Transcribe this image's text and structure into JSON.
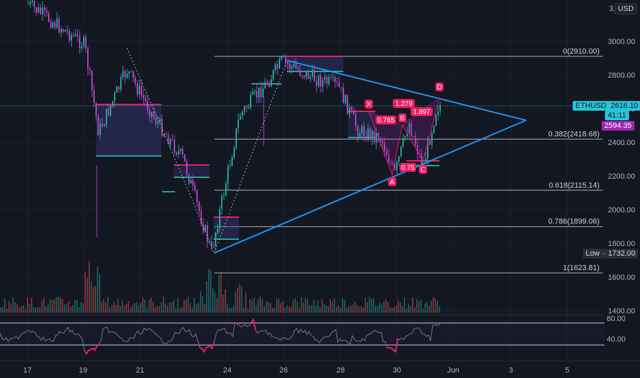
{
  "currency_button": "USD",
  "symbol_tag": {
    "symbol": "ETHUSD",
    "price": "2616.10",
    "countdown": "41:11",
    "color": "#26c6da"
  },
  "prev_price_tag": {
    "value": "2594.35",
    "color": "#9c27b0"
  },
  "low_tag": {
    "label": "Low",
    "value": "1732.00"
  },
  "price_axis": {
    "top_partial": "3...",
    "ticks": [
      "3000.00",
      "2800.00",
      "2600.00",
      "2400.00",
      "2200.00",
      "2000.00",
      "1800.00",
      "1600.00",
      "1400.00"
    ]
  },
  "rsi_axis": {
    "ticks": [
      "80.00",
      "40.00"
    ]
  },
  "time_axis": {
    "ticks": [
      "17",
      "19",
      "21",
      "24",
      "26",
      "28",
      "30",
      "Jun",
      "3",
      "5"
    ]
  },
  "fib_levels": [
    {
      "label": "0(2910.00)",
      "price": 2910.0
    },
    {
      "label": "0.382(2418.68)",
      "price": 2418.68
    },
    {
      "label": "0.618(2115.14)",
      "price": 2115.14
    },
    {
      "label": "0.786(1899.06)",
      "price": 1899.06
    },
    {
      "label": "1(1623.81)",
      "price": 1623.81
    }
  ],
  "harmonic": {
    "points": [
      "X",
      "A",
      "B",
      "C",
      "D"
    ],
    "ratios": [
      "0.765",
      "1.279",
      "1.897",
      "0.75"
    ],
    "color": "#e91e63"
  },
  "colors": {
    "bg": "#131722",
    "up": "#26a69a",
    "down": "#ab47bc",
    "trendline": "#2196f3",
    "rsi_line": "#787b86",
    "rsi_extreme": "#e91e63",
    "last_price_line": "#26c6da"
  },
  "chart_data": {
    "type": "candlestick",
    "symbol": "ETHUSD",
    "x": [
      "17",
      "19",
      "21",
      "24",
      "26",
      "28",
      "30",
      "Jun",
      "3",
      "5"
    ],
    "ylim": [
      1400,
      3200
    ],
    "last_price": 2616.1,
    "low": 1732.0,
    "close_path": [
      {
        "t": "17",
        "price": 3220
      },
      {
        "t": "19",
        "price": 2980
      },
      {
        "t": "19.5",
        "price": 2460
      },
      {
        "t": "20.5",
        "price": 2830
      },
      {
        "t": "21.5",
        "price": 2540
      },
      {
        "t": "22.5",
        "price": 2300
      },
      {
        "t": "23.5",
        "price": 1750
      },
      {
        "t": "24.5",
        "price": 2560
      },
      {
        "t": "25.5",
        "price": 2760
      },
      {
        "t": "26",
        "price": 2880
      },
      {
        "t": "27",
        "price": 2790
      },
      {
        "t": "28",
        "price": 2730
      },
      {
        "t": "28.7",
        "price": 2470
      },
      {
        "t": "29.5",
        "price": 2430
      },
      {
        "t": "30",
        "price": 2210
      },
      {
        "t": "30.5",
        "price": 2520
      },
      {
        "t": "31",
        "price": 2250
      },
      {
        "t": "31.5",
        "price": 2616
      }
    ],
    "rsi_levels": [
      80,
      40
    ]
  }
}
